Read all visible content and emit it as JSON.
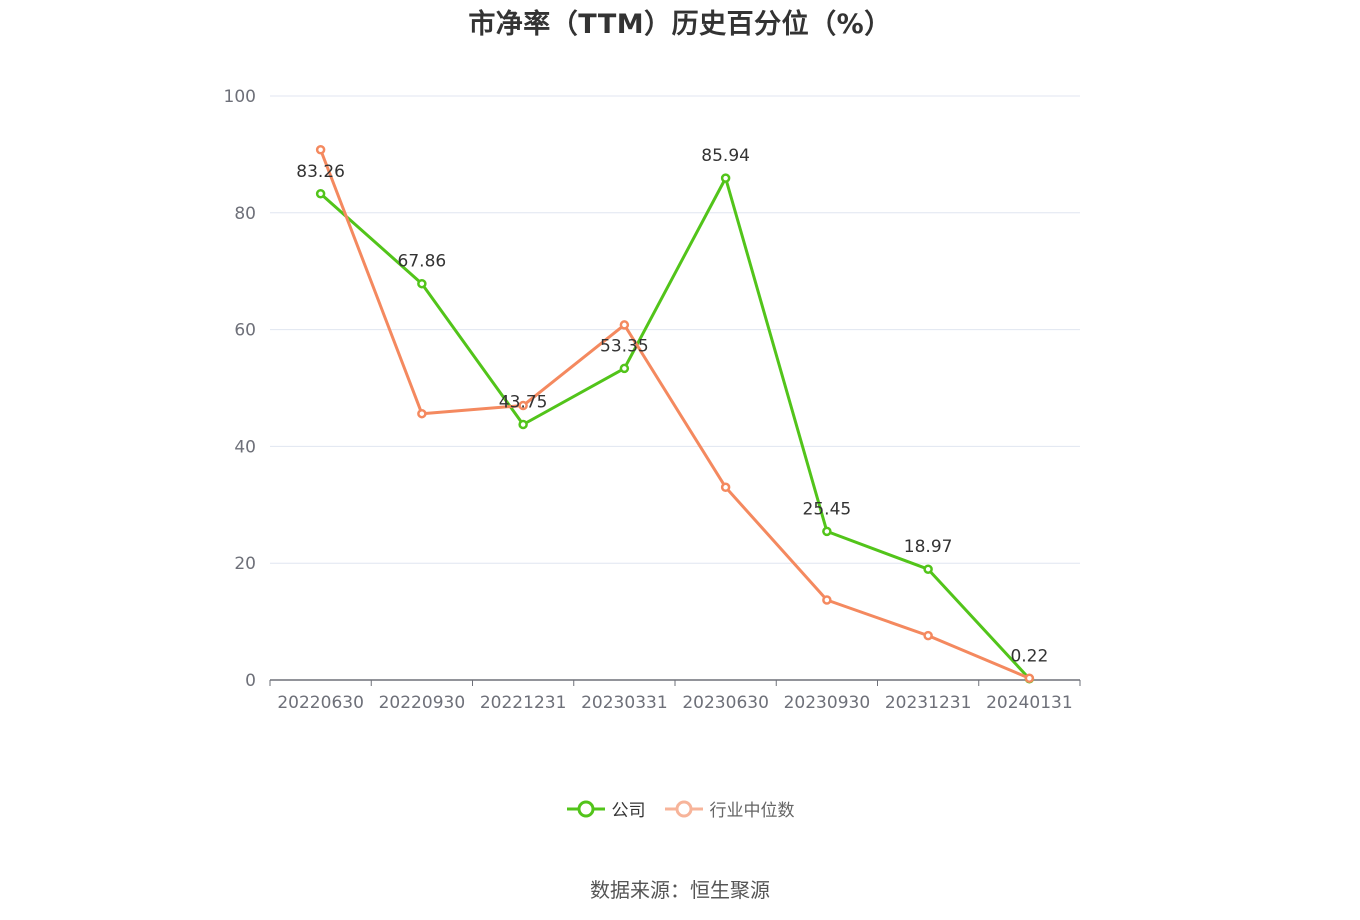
{
  "chart_data": {
    "type": "line",
    "title": "市净率（TTM）历史百分位（%）",
    "categories": [
      "20220630",
      "20220930",
      "20221231",
      "20230331",
      "20230630",
      "20230930",
      "20231231",
      "20240131"
    ],
    "ylim": [
      0,
      100
    ],
    "yticks": [
      "0",
      "20",
      "40",
      "60",
      "80",
      "100"
    ],
    "grid": true,
    "legend_position": "bottom-center",
    "series": [
      {
        "name": "公司",
        "color": "#52c41a",
        "values": [
          83.26,
          67.86,
          43.75,
          53.35,
          85.94,
          25.45,
          18.97,
          0.22
        ],
        "labels": [
          "83.26",
          "67.86",
          "43.75",
          "53.35",
          "85.94",
          "25.45",
          "18.97",
          "0.22"
        ]
      },
      {
        "name": "行业中位数",
        "color": "#f4895f",
        "values": [
          90.8,
          45.6,
          47.0,
          60.8,
          33.0,
          13.7,
          7.6,
          0.3
        ]
      }
    ]
  },
  "legend": {
    "company_label": "公司",
    "industry_label": "行业中位数",
    "company_color": "#52c41a",
    "industry_color": "#f4895f"
  },
  "source": "数据来源：恒生聚源"
}
